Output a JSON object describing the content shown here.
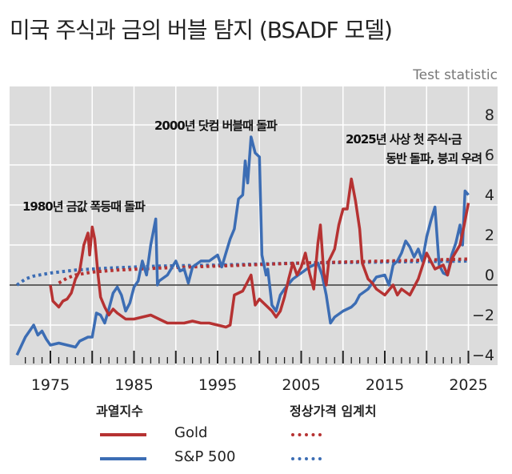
{
  "title": "미국 주식과 금의 버블 탐지   (BSADF 모델)",
  "legend": {
    "index_header": "과열지수",
    "critical_header": "정상가격 임계치",
    "gold": "Gold",
    "sp500": "S&P 500"
  },
  "colors": {
    "gold": "#b63232",
    "sp500": "#3c6db4",
    "bg": "#dcdcdc"
  },
  "chart_data": {
    "type": "line",
    "title": "미국 주식과 금의 버블 탐지 (BSADF 모델)",
    "ylabel": "Test statistic",
    "ylim": [
      -4.3,
      9.6
    ],
    "xlim": [
      1970.2,
      2028
    ],
    "yticks": [
      8,
      6,
      4,
      2,
      0,
      -2,
      -4
    ],
    "ytick_labels": [
      "8",
      "6",
      "4",
      "2",
      "0",
      "−2",
      "−4"
    ],
    "xticks": [
      1975,
      1985,
      1995,
      2005,
      2015,
      2025
    ],
    "xtick_labels": [
      "1975",
      "1985",
      "1995",
      "2005",
      "2015",
      "2025"
    ],
    "annotations": [
      {
        "text": "1980년 금값 폭등때 돌파"
      },
      {
        "text": "2000년 닷컴 버블때 돌파"
      },
      {
        "text": "2025년 사상 첫 주식·금"
      },
      {
        "text": "동반 돌파, 붕괴 우려"
      }
    ],
    "series": [
      {
        "name": "S&P 500",
        "style": "solid",
        "x": [
          1971,
          1972,
          1973,
          1973.5,
          1974,
          1974.5,
          1975,
          1976,
          1977,
          1978,
          1978.5,
          1979.5,
          1980,
          1980.5,
          1981,
          1981.5,
          1982,
          1982.5,
          1983,
          1983.5,
          1984,
          1984.5,
          1985,
          1985.5,
          1986,
          1986.5,
          1987,
          1987.6,
          1987.8,
          1988,
          1989,
          1990,
          1990.5,
          1991,
          1991.5,
          1992,
          1993,
          1994,
          1995,
          1995.5,
          1996,
          1996.5,
          1997,
          1997.5,
          1998,
          1998.3,
          1998.6,
          1999,
          1999.5,
          2000,
          2000.3,
          2000.8,
          2001,
          2001.5,
          2002,
          2002.5,
          2003,
          2004,
          2005,
          2006,
          2006.5,
          2007,
          2007.5,
          2008,
          2008.5,
          2009,
          2010,
          2011,
          2011.5,
          2012,
          2013,
          2013.5,
          2014,
          2015,
          2015.5,
          2016,
          2016.5,
          2017,
          2017.5,
          2018,
          2018.5,
          2019,
          2019.5,
          2020,
          2020.5,
          2021,
          2021.5,
          2022,
          2022.5,
          2023,
          2023.5,
          2024,
          2024.3,
          2024.6,
          2025
        ],
        "y": [
          -3.5,
          -2.6,
          -2.0,
          -2.5,
          -2.3,
          -2.7,
          -3.0,
          -2.9,
          -3.0,
          -3.1,
          -2.8,
          -2.6,
          -2.6,
          -1.4,
          -1.5,
          -1.9,
          -1.2,
          -0.4,
          -0.1,
          -0.5,
          -1.3,
          -0.9,
          -0.1,
          0.2,
          1.2,
          0.5,
          2.0,
          3.3,
          0.0,
          0.2,
          0.5,
          1.2,
          0.7,
          0.8,
          0.1,
          0.9,
          1.2,
          1.2,
          1.5,
          0.9,
          1.6,
          2.3,
          2.8,
          4.3,
          4.5,
          6.2,
          5.1,
          7.4,
          6.6,
          6.4,
          1.5,
          0.5,
          0.8,
          -1.0,
          -1.3,
          -0.5,
          -0.2,
          0.3,
          0.6,
          0.9,
          1.0,
          1.1,
          0.5,
          -0.5,
          -1.9,
          -1.6,
          -1.3,
          -1.1,
          -0.9,
          -0.5,
          -0.2,
          0.1,
          0.4,
          0.5,
          0.0,
          1.0,
          1.2,
          1.6,
          2.2,
          1.9,
          1.4,
          1.8,
          1.2,
          2.4,
          3.2,
          3.9,
          1.0,
          0.6,
          0.5,
          1.5,
          2.1,
          3.0,
          2.0,
          4.7,
          4.5
        ]
      },
      {
        "name": "Gold",
        "style": "solid",
        "x": [
          1975,
          1975.3,
          1976,
          1976.5,
          1977,
          1977.5,
          1978,
          1978.5,
          1979,
          1979.5,
          1979.7,
          1980,
          1980.3,
          1980.7,
          1981,
          1981.5,
          1982,
          1982.5,
          1983,
          1984,
          1985,
          1986,
          1987,
          1988,
          1989,
          1990,
          1991,
          1992,
          1993,
          1994,
          1995,
          1996,
          1996.5,
          1997,
          1998,
          1999,
          1999.5,
          2000,
          2001,
          2001.5,
          2002,
          2002.5,
          2003,
          2003.5,
          2004,
          2004.5,
          2005,
          2005.5,
          2006,
          2006.5,
          2007,
          2007.3,
          2007.7,
          2008,
          2008.3,
          2009,
          2009.5,
          2010,
          2010.5,
          2011,
          2011.5,
          2012,
          2012.3,
          2013,
          2013.5,
          2014,
          2015,
          2016,
          2016.5,
          2017,
          2018,
          2019,
          2020,
          2021,
          2022,
          2022.5,
          2023,
          2024,
          2024.5,
          2025
        ],
        "y": [
          0.0,
          -0.8,
          -1.1,
          -0.8,
          -0.7,
          -0.4,
          0.3,
          0.7,
          2.0,
          2.6,
          1.5,
          2.9,
          2.3,
          0.5,
          -0.6,
          -1.1,
          -1.5,
          -1.2,
          -1.4,
          -1.7,
          -1.7,
          -1.6,
          -1.5,
          -1.7,
          -1.9,
          -1.9,
          -1.9,
          -1.8,
          -1.9,
          -1.9,
          -2.0,
          -2.1,
          -2.0,
          -0.5,
          -0.3,
          0.5,
          -1.0,
          -0.7,
          -1.1,
          -1.3,
          -1.6,
          -1.3,
          -0.6,
          0.3,
          1.1,
          0.5,
          0.9,
          1.6,
          0.6,
          -0.2,
          2.1,
          3.0,
          0.6,
          0.0,
          1.2,
          1.8,
          3.0,
          3.8,
          3.8,
          5.3,
          4.2,
          2.8,
          1.1,
          0.3,
          0.1,
          -0.2,
          -0.5,
          0.0,
          -0.5,
          -0.2,
          -0.5,
          0.3,
          1.6,
          0.8,
          1.0,
          0.5,
          1.3,
          2.0,
          3.0,
          4.1
        ]
      },
      {
        "name": "S&P 500 critical value",
        "style": "dotted",
        "x": [
          1971,
          1972,
          1973,
          1975,
          1978,
          1982,
          1988,
          1995,
          2005,
          2015,
          2025
        ],
        "y": [
          0.0,
          0.3,
          0.45,
          0.6,
          0.75,
          0.85,
          0.95,
          1.0,
          1.1,
          1.15,
          1.2
        ]
      },
      {
        "name": "Gold critical value",
        "style": "dotted",
        "x": [
          1976,
          1977,
          1978,
          1980,
          1983,
          1988,
          1995,
          2005,
          2015,
          2025
        ],
        "y": [
          0.1,
          0.35,
          0.5,
          0.65,
          0.75,
          0.85,
          0.95,
          1.1,
          1.2,
          1.3
        ]
      }
    ]
  }
}
